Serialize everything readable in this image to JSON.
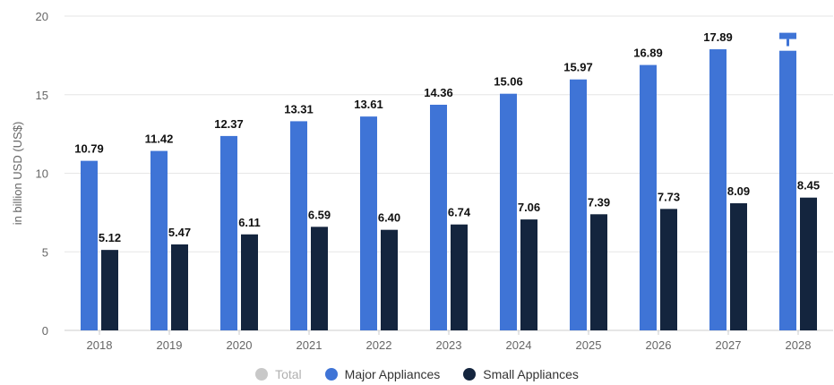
{
  "chart_data": {
    "type": "bar",
    "categories": [
      "2018",
      "2019",
      "2020",
      "2021",
      "2022",
      "2023",
      "2024",
      "2025",
      "2026",
      "2027",
      "2028"
    ],
    "series": [
      {
        "name": "Major Appliances",
        "color": "#3f74d6",
        "values": [
          10.79,
          11.42,
          12.37,
          13.31,
          13.61,
          14.36,
          15.06,
          15.97,
          16.89,
          17.89,
          17.8
        ]
      },
      {
        "name": "Small Appliances",
        "color": "#14253e",
        "values": [
          5.12,
          5.47,
          6.11,
          6.59,
          6.4,
          6.74,
          7.06,
          7.39,
          7.73,
          8.09,
          8.45
        ]
      }
    ],
    "data_labels": {
      "Major Appliances": [
        "10.79",
        "11.42",
        "12.37",
        "13.31",
        "13.61",
        "14.36",
        "15.06",
        "15.97",
        "16.89",
        "17.89",
        ""
      ],
      "Small Appliances": [
        "5.12",
        "5.47",
        "6.11",
        "6.59",
        "6.40",
        "6.74",
        "7.06",
        "7.39",
        "7.73",
        "8.09",
        "8.45"
      ]
    },
    "ylabel": "in billion USD (US$)",
    "ylim": [
      0,
      20
    ],
    "yticks": [
      0,
      5,
      10,
      15,
      20
    ],
    "grid": true,
    "legend_position": "bottom"
  },
  "legend": {
    "items": [
      {
        "label": "Total",
        "color": "#c8c8c8",
        "disabled": true
      },
      {
        "label": "Major Appliances",
        "color": "#3f74d6",
        "disabled": false
      },
      {
        "label": "Small Appliances",
        "color": "#14253e",
        "disabled": false
      }
    ]
  }
}
